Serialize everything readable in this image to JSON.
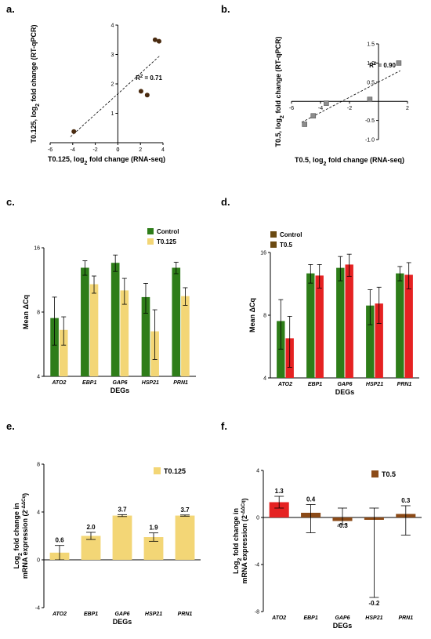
{
  "panels": [
    {
      "id": "a",
      "letter": "a.",
      "chart_data": {
        "type": "scatter",
        "xlabel": "T0.125, log",
        "xlabel_sub": "2",
        "xlabel_rest": " fold change (RNA-seq)",
        "ylabel": "T0.125, log",
        "ylabel_sub": "2",
        "ylabel_rest": " fold change (RT-qPCR)",
        "xlim": [
          -6,
          4
        ],
        "ylim": [
          0,
          4
        ],
        "xticks": [
          "-6",
          "-4",
          "-2",
          "0",
          "2",
          "4"
        ],
        "yticks": [
          "1",
          "2",
          "3",
          "4"
        ],
        "points": [
          {
            "x": -3.9,
            "y": 0.38
          },
          {
            "x": 2.05,
            "y": 1.75
          },
          {
            "x": 2.6,
            "y": 1.62
          },
          {
            "x": 3.3,
            "y": 3.5
          },
          {
            "x": 3.65,
            "y": 3.45
          }
        ],
        "fit": [
          [
            -4.2,
            0.2
          ],
          [
            3.7,
            2.95
          ]
        ],
        "r2_label": "R",
        "r2_sup": "2",
        "r2_value": " = 0.71",
        "marker": "circle",
        "marker_color": "#4a2b10"
      }
    },
    {
      "id": "b",
      "letter": "b.",
      "chart_data": {
        "type": "scatter",
        "xlabel": "T0.5, log",
        "xlabel_sub": "2",
        "xlabel_rest": " fold change (RNA-seq)",
        "ylabel": "T0.5, log",
        "ylabel_sub": "2",
        "ylabel_rest": " fold change (RT-qPCR)",
        "xlim": [
          -6,
          2
        ],
        "ylim": [
          -1.0,
          1.5
        ],
        "xticks": [
          "-6",
          "-4",
          "-2",
          "2"
        ],
        "yticks": [
          "-1.0",
          "-0.5",
          "0.5",
          "1.0",
          "1.5"
        ],
        "points": [
          {
            "x": -5.1,
            "y": -0.6
          },
          {
            "x": -4.5,
            "y": -0.38
          },
          {
            "x": -3.6,
            "y": -0.05
          },
          {
            "x": -0.6,
            "y": 0.05
          },
          {
            "x": 1.4,
            "y": 1.0
          }
        ],
        "fit": [
          [
            -5.3,
            -0.55
          ],
          [
            1.5,
            0.8
          ]
        ],
        "r2_label": "R",
        "r2_sup": "2",
        "r2_value": " = 0.90",
        "marker": "square",
        "marker_color": "#8c8c8c"
      }
    },
    {
      "id": "c",
      "letter": "c.",
      "chart_data": {
        "type": "bar",
        "categories": [
          "ATO2",
          "EBP1",
          "GAP6",
          "HSP21",
          "PRN1"
        ],
        "series": [
          {
            "name": "Control",
            "values": [
              7.5,
              12.9,
              13.6,
              9.4,
              12.9
            ],
            "err": [
              1.9,
              1.0,
              1.2,
              1.5,
              0.8
            ],
            "color": "#2e7d19"
          },
          {
            "name": "T0.125",
            "values": [
              6.6,
              10.8,
              10.1,
              6.5,
              9.5
            ],
            "err": [
              1.0,
              1.0,
              1.4,
              1.7,
              0.9
            ],
            "color": "#f3d676"
          }
        ],
        "ylim": [
          4,
          16
        ],
        "yticks": [
          "4",
          "8",
          "16"
        ],
        "ylabel": "Mean ΔCq",
        "xlabel": "DEGs",
        "legend": "top-right",
        "log2_y": true
      }
    },
    {
      "id": "d",
      "letter": "d.",
      "chart_data": {
        "type": "bar",
        "categories": [
          "ATO2",
          "EBP1",
          "GAP6",
          "HSP21",
          "PRN1"
        ],
        "series": [
          {
            "name": "Control",
            "values": [
              7.5,
              12.7,
              13.5,
              8.9,
              12.7
            ],
            "err": [
              2.0,
              1.3,
              1.8,
              1.7,
              1.0
            ],
            "color": "#2e7d19",
            "legend_color": "#6b4a12"
          },
          {
            "name": "T0.5",
            "values": [
              6.2,
              12.4,
              14.0,
              9.1,
              12.5
            ],
            "err": [
              1.7,
              1.6,
              1.7,
              1.8,
              1.8
            ],
            "color": "#e52222",
            "legend_color": "#6b4a12"
          }
        ],
        "ylim": [
          4,
          16
        ],
        "yticks": [
          "4",
          "8",
          "16"
        ],
        "ylabel": "Mean ΔCq",
        "xlabel": "DEGs",
        "legend": "top-center",
        "log2_y": true
      }
    },
    {
      "id": "e",
      "letter": "e.",
      "chart_data": {
        "type": "bar",
        "categories": [
          "ATO2",
          "EBP1",
          "GAP6",
          "HSP21",
          "PRN1"
        ],
        "values": [
          0.6,
          2.0,
          3.7,
          1.9,
          3.7
        ],
        "err": [
          0.6,
          0.3,
          0.08,
          0.35,
          0.05
        ],
        "data_labels": [
          "0.6",
          "2.0",
          "3.7",
          "1.9",
          "3.7"
        ],
        "series_name": "T0.125",
        "color": "#f3d676",
        "ylim": [
          -4,
          8
        ],
        "yticks": [
          "-4",
          "0",
          "4",
          "8"
        ],
        "ylabel_line1": "Log",
        "ylabel_sub": "2",
        "ylabel_line1_rest": " fold change in",
        "ylabel_line2": "mRNA expression (2",
        "ylabel_sup": "-ΔΔCq",
        "ylabel_line2_rest": ")",
        "xlabel": "DEGs",
        "legend": "top-right"
      }
    },
    {
      "id": "f",
      "letter": "f.",
      "chart_data": {
        "type": "bar",
        "categories": [
          "ATO2",
          "EBP1",
          "GAP6",
          "HSP21",
          "PRN1"
        ],
        "values": [
          1.3,
          0.4,
          -0.3,
          -0.2,
          0.3
        ],
        "err_low": [
          0.5,
          1.7,
          0.3,
          6.6,
          1.8
        ],
        "err_high": [
          0.5,
          0.7,
          1.1,
          1.0,
          0.7
        ],
        "data_labels": [
          "1.3",
          "0.4",
          "-0.3",
          "-0.2",
          "0.3"
        ],
        "label_below": [
          false,
          false,
          true,
          true,
          false
        ],
        "series_name": "T0.5",
        "colors": [
          "#e52222",
          "#8b4a17",
          "#8b4a17",
          "#8b4a17",
          "#8b4a17"
        ],
        "legend_color": "#8b4a17",
        "ylim": [
          -8,
          4
        ],
        "yticks": [
          "-8",
          "-4",
          "0",
          "4"
        ],
        "ylabel_line1": "Log",
        "ylabel_sub": "2",
        "ylabel_line1_rest": " fold change in",
        "ylabel_line2": "mRNA expression (2",
        "ylabel_sup": "-ΔΔCq",
        "ylabel_line2_rest": ")",
        "xlabel": "DEGs",
        "legend": "top-right"
      }
    }
  ]
}
